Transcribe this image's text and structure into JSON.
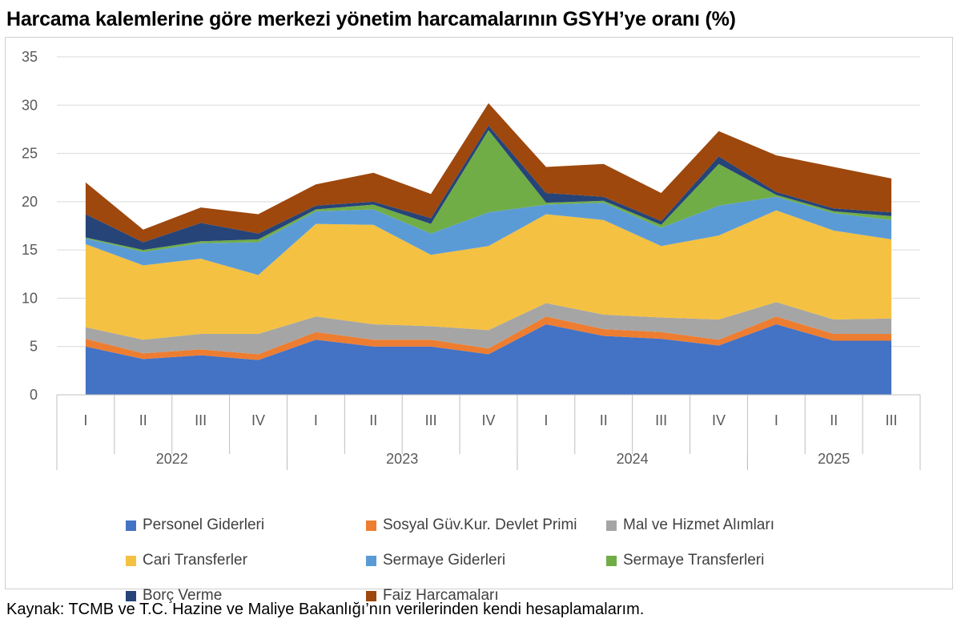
{
  "title": "Harcama kalemlerine göre merkezi yönetim harcamalarının GSYH’ye oranı (%)",
  "source": "Kaynak: TCMB ve T.C. Hazine ve Maliye Bakanlığı’nın verilerinden kendi hesaplamalarım.",
  "chart_data": {
    "type": "area",
    "stacked": true,
    "ylim": [
      0,
      35
    ],
    "yticks": [
      0,
      5,
      10,
      15,
      20,
      25,
      30,
      35
    ],
    "grid": true,
    "legend_position": "bottom",
    "categories": [
      "I",
      "II",
      "III",
      "IV",
      "I",
      "II",
      "III",
      "IV",
      "I",
      "II",
      "III",
      "IV",
      "I",
      "II",
      "III"
    ],
    "groups": [
      {
        "label": "2022",
        "span": 4
      },
      {
        "label": "2023",
        "span": 4
      },
      {
        "label": "2024",
        "span": 4
      },
      {
        "label": "2025",
        "span": 3
      }
    ],
    "series": [
      {
        "name": "Personel Giderleri",
        "color": "#4472C4",
        "values": [
          5.0,
          3.7,
          4.1,
          3.6,
          5.7,
          5.0,
          5.0,
          4.2,
          7.3,
          6.1,
          5.8,
          5.1,
          7.3,
          5.6,
          5.6
        ]
      },
      {
        "name": "Sosyal Güv.Kur. Devlet Primi",
        "color": "#ED7D31",
        "values": [
          0.8,
          0.6,
          0.6,
          0.6,
          0.8,
          0.7,
          0.7,
          0.6,
          0.8,
          0.7,
          0.7,
          0.6,
          0.8,
          0.7,
          0.7
        ]
      },
      {
        "name": "Mal ve Hizmet Alımları",
        "color": "#A5A5A5",
        "values": [
          1.2,
          1.4,
          1.6,
          2.1,
          1.6,
          1.6,
          1.4,
          1.9,
          1.4,
          1.5,
          1.5,
          2.1,
          1.5,
          1.5,
          1.6
        ]
      },
      {
        "name": "Cari Transferler",
        "color": "#F4C142",
        "values": [
          8.6,
          7.7,
          7.8,
          6.1,
          9.6,
          10.3,
          7.4,
          8.7,
          9.2,
          9.8,
          7.4,
          8.7,
          9.5,
          9.2,
          8.2
        ]
      },
      {
        "name": "Sermaye Giderleri",
        "color": "#5B9BD5",
        "values": [
          0.6,
          1.4,
          1.6,
          3.4,
          1.3,
          1.6,
          2.2,
          3.5,
          1.0,
          1.8,
          1.9,
          3.1,
          1.4,
          1.8,
          2.0
        ]
      },
      {
        "name": "Sermaye Transferleri",
        "color": "#70AD47",
        "values": [
          0.1,
          0.2,
          0.2,
          0.3,
          0.2,
          0.5,
          1.0,
          8.5,
          0.2,
          0.2,
          0.3,
          4.3,
          0.2,
          0.2,
          0.4
        ]
      },
      {
        "name": "Borç Verme",
        "color": "#264478",
        "values": [
          2.4,
          0.8,
          1.9,
          0.6,
          0.4,
          0.3,
          0.6,
          0.5,
          1.0,
          0.4,
          0.4,
          0.8,
          0.3,
          0.3,
          0.4
        ]
      },
      {
        "name": "Faiz Harcamaları",
        "color": "#9E480E",
        "values": [
          3.3,
          1.3,
          1.6,
          2.0,
          2.2,
          3.0,
          2.5,
          2.3,
          2.7,
          3.4,
          2.9,
          2.6,
          3.8,
          4.3,
          3.5
        ]
      }
    ]
  }
}
